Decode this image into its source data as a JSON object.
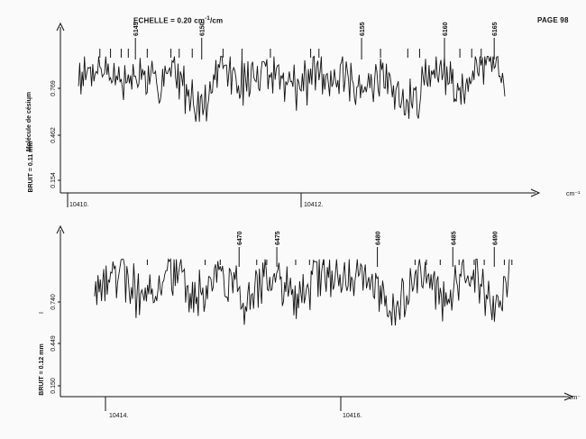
{
  "header": {
    "scale_label": "ECHELLE = 0.20",
    "scale_unit": "cm",
    "scale_unit_exp": "-1",
    "scale_suffix": "/cm",
    "page_label": "PAGE 98"
  },
  "colors": {
    "ink": "#111111",
    "paper": "#fafafa"
  },
  "chart_data": [
    {
      "type": "line",
      "x_unit_label": "cm⁻¹",
      "x_ticks": [
        "10410.",
        "10412."
      ],
      "xlim": [
        10409.9,
        10413.6
      ],
      "y_title": "Molécule de césium",
      "y_noise_label": "BRUIT = 0.11 mm",
      "y_symbol": "I",
      "y_ticks": [
        "0.769",
        "0.462",
        "0.154"
      ],
      "ylim": [
        0.0,
        1.0
      ],
      "line_numbers": [
        "6145",
        "6150",
        "6155",
        "6160",
        "6165"
      ],
      "line_positions": [
        10410.48,
        10411.04,
        10412.39,
        10413.09,
        10413.51
      ],
      "marker_positions": [
        10410.18,
        10410.27,
        10410.36,
        10410.42,
        10410.58,
        10410.78,
        10410.85,
        10410.96,
        10411.22,
        10411.38,
        10411.62,
        10411.96,
        10412.03,
        10412.55,
        10412.78,
        10412.88,
        10413.22,
        10413.32,
        10413.4
      ],
      "sample_points": [
        [
          10410.0,
          0.7
        ],
        [
          10410.18,
          0.86
        ],
        [
          10410.36,
          0.62
        ],
        [
          10410.5,
          0.74
        ],
        [
          10410.62,
          0.55
        ],
        [
          10410.78,
          0.8
        ],
        [
          10410.95,
          0.4
        ],
        [
          10411.06,
          0.32
        ],
        [
          10411.2,
          0.81
        ],
        [
          10411.4,
          0.6
        ],
        [
          10411.62,
          0.83
        ],
        [
          10411.85,
          0.5
        ],
        [
          10412.05,
          0.78
        ],
        [
          10412.25,
          0.65
        ],
        [
          10412.39,
          0.34
        ],
        [
          10412.55,
          0.79
        ],
        [
          10412.72,
          0.38
        ],
        [
          10412.8,
          0.28
        ],
        [
          10413.0,
          0.8
        ],
        [
          10413.2,
          0.58
        ],
        [
          10413.35,
          0.82
        ],
        [
          10413.51,
          0.9
        ],
        [
          10413.6,
          0.58
        ]
      ]
    },
    {
      "type": "line",
      "x_unit_label": "cm⁻",
      "x_ticks": [
        "10414.",
        "10416."
      ],
      "xlim": [
        10413.5,
        10417.0
      ],
      "y_title": "",
      "y_noise_label": "BRUIT = 0.12 mm",
      "y_symbol": "I",
      "y_ticks": [
        "0.740",
        "0.449",
        "0.150"
      ],
      "ylim": [
        0.0,
        1.0
      ],
      "line_numbers": [
        "6470",
        "6475",
        "6480",
        "6485",
        "6490"
      ],
      "line_positions": [
        10414.85,
        10415.15,
        10415.95,
        10416.55,
        10416.88
      ],
      "marker_positions": [
        10414.12,
        10414.58,
        10414.7,
        10414.99,
        10415.07,
        10415.3,
        10415.41,
        10415.52,
        10416.25,
        10416.34,
        10416.45,
        10416.6,
        10416.72,
        10416.8,
        10416.96,
        10417.02
      ],
      "sample_points": [
        [
          10413.7,
          0.6
        ],
        [
          10413.9,
          0.8
        ],
        [
          10414.1,
          0.4
        ],
        [
          10414.3,
          0.82
        ],
        [
          10414.5,
          0.45
        ],
        [
          10414.7,
          0.78
        ],
        [
          10414.9,
          0.35
        ],
        [
          10415.1,
          0.8
        ],
        [
          10415.3,
          0.45
        ],
        [
          10415.5,
          0.7
        ],
        [
          10415.7,
          0.8
        ],
        [
          10415.9,
          0.7
        ],
        [
          10416.1,
          0.3
        ],
        [
          10416.3,
          0.8
        ],
        [
          10416.5,
          0.42
        ],
        [
          10416.7,
          0.78
        ],
        [
          10416.9,
          0.35
        ],
        [
          10417.0,
          0.82
        ]
      ]
    }
  ]
}
